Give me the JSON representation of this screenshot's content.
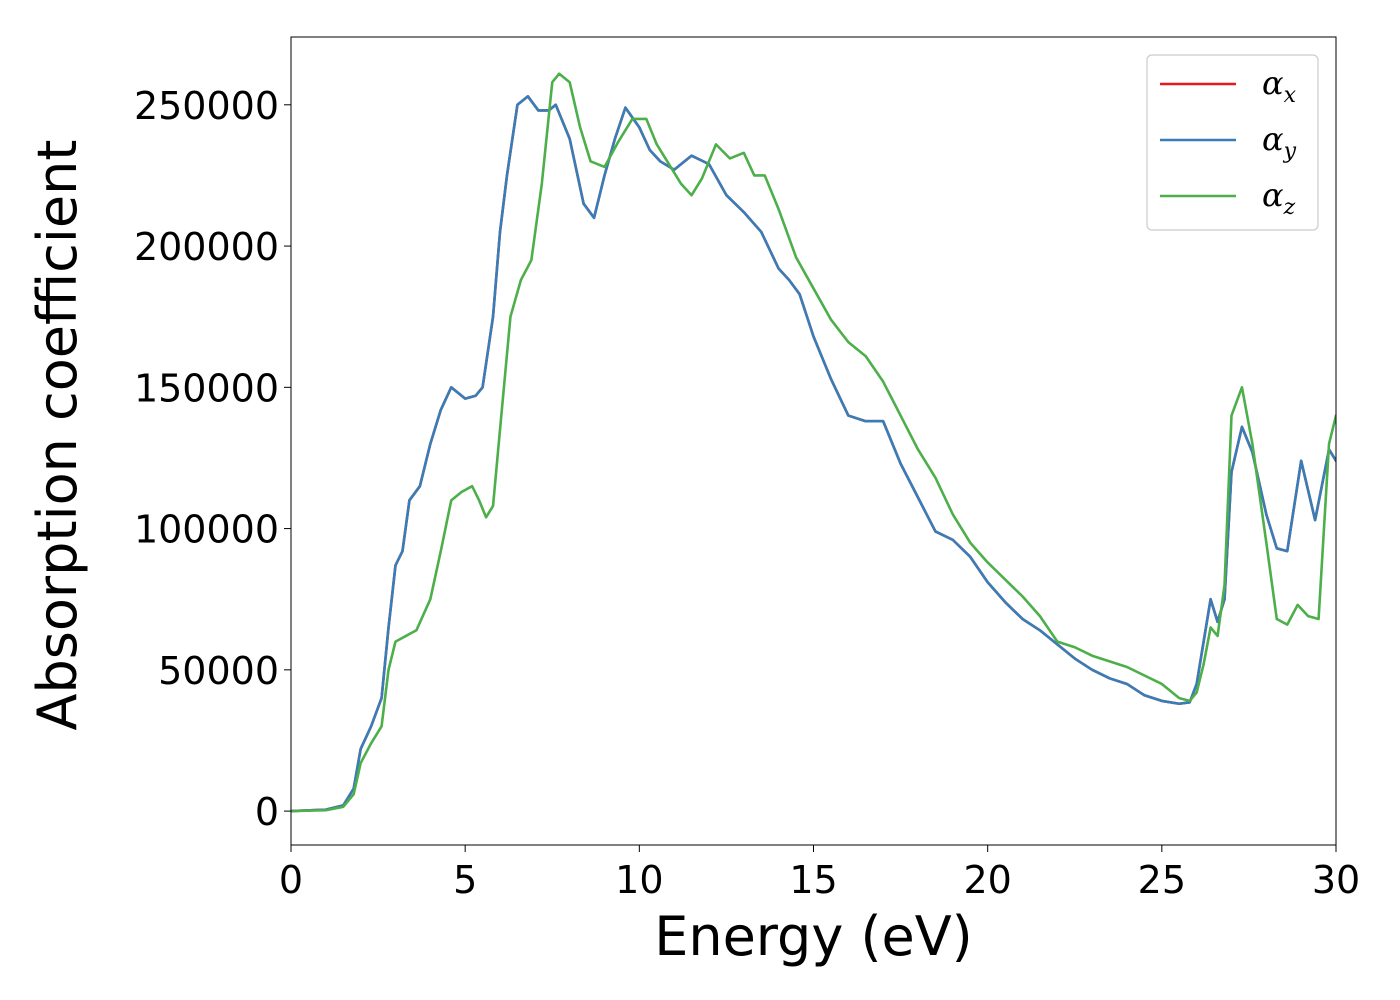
{
  "chart_data": {
    "type": "line",
    "title": "",
    "xlabel": "Energy (eV)",
    "ylabel": "Absorption coefficient",
    "xlim": [
      0,
      30
    ],
    "ylim": [
      -12000,
      274000
    ],
    "xticks": [
      0,
      5,
      10,
      15,
      20,
      25,
      30
    ],
    "xtick_labels": [
      "0",
      "5",
      "10",
      "15",
      "20",
      "25",
      "30"
    ],
    "yticks": [
      0,
      50000,
      100000,
      150000,
      200000,
      250000
    ],
    "ytick_labels": [
      "0",
      "50000",
      "100000",
      "150000",
      "200000",
      "250000"
    ],
    "grid": false,
    "legend_position": "top-right",
    "series": [
      {
        "name": "α_x",
        "legend_main": "α",
        "legend_sub": "x",
        "color": "#e41a1c",
        "x": [
          0,
          1,
          1.5,
          1.8,
          2.0,
          2.3,
          2.6,
          2.8,
          3.0,
          3.2,
          3.4,
          3.7,
          4.0,
          4.3,
          4.6,
          5.0,
          5.3,
          5.5,
          5.8,
          6.0,
          6.2,
          6.5,
          6.8,
          7.1,
          7.4,
          7.6,
          8.0,
          8.4,
          8.7,
          9.0,
          9.3,
          9.6,
          10.0,
          10.3,
          10.6,
          11.0,
          11.5,
          12.0,
          12.5,
          13.0,
          13.5,
          14.0,
          14.3,
          14.6,
          15.0,
          15.5,
          16.0,
          16.5,
          17.0,
          17.5,
          18.0,
          18.5,
          19.0,
          19.5,
          20.0,
          20.5,
          21.0,
          21.5,
          22.0,
          22.5,
          23.0,
          23.5,
          24.0,
          24.5,
          25.0,
          25.5,
          25.8,
          26.0,
          26.2,
          26.4,
          26.6,
          26.8,
          27.0,
          27.3,
          27.6,
          28.0,
          28.3,
          28.6,
          29.0,
          29.4,
          29.8,
          30.0
        ],
        "y": [
          0,
          500,
          2000,
          8000,
          22000,
          30000,
          40000,
          65000,
          87000,
          92000,
          110000,
          115000,
          130000,
          142000,
          150000,
          146000,
          147000,
          150000,
          175000,
          205000,
          225000,
          250000,
          253000,
          248000,
          248000,
          250000,
          238000,
          215000,
          210000,
          225000,
          238000,
          249000,
          242000,
          234000,
          230000,
          227000,
          232000,
          229000,
          218000,
          212000,
          205000,
          192000,
          188000,
          183000,
          168000,
          153000,
          140000,
          138000,
          138000,
          123000,
          111000,
          99000,
          96000,
          90000,
          81000,
          74000,
          68000,
          64000,
          59000,
          54000,
          50000,
          47000,
          45000,
          41000,
          39000,
          38000,
          38500,
          45000,
          60000,
          75000,
          67000,
          75000,
          120000,
          136000,
          127000,
          105000,
          93000,
          92000,
          124000,
          103000,
          128000,
          124000
        ]
      },
      {
        "name": "α_y",
        "legend_main": "α",
        "legend_sub": "y",
        "color": "#377eb8",
        "x": [
          0,
          1,
          1.5,
          1.8,
          2.0,
          2.3,
          2.6,
          2.8,
          3.0,
          3.2,
          3.4,
          3.7,
          4.0,
          4.3,
          4.6,
          5.0,
          5.3,
          5.5,
          5.8,
          6.0,
          6.2,
          6.5,
          6.8,
          7.1,
          7.4,
          7.6,
          8.0,
          8.4,
          8.7,
          9.0,
          9.3,
          9.6,
          10.0,
          10.3,
          10.6,
          11.0,
          11.5,
          12.0,
          12.5,
          13.0,
          13.5,
          14.0,
          14.3,
          14.6,
          15.0,
          15.5,
          16.0,
          16.5,
          17.0,
          17.5,
          18.0,
          18.5,
          19.0,
          19.5,
          20.0,
          20.5,
          21.0,
          21.5,
          22.0,
          22.5,
          23.0,
          23.5,
          24.0,
          24.5,
          25.0,
          25.5,
          25.8,
          26.0,
          26.2,
          26.4,
          26.6,
          26.8,
          27.0,
          27.3,
          27.6,
          28.0,
          28.3,
          28.6,
          29.0,
          29.4,
          29.8,
          30.0
        ],
        "y": [
          0,
          500,
          2000,
          8000,
          22000,
          30000,
          40000,
          65000,
          87000,
          92000,
          110000,
          115000,
          130000,
          142000,
          150000,
          146000,
          147000,
          150000,
          175000,
          205000,
          225000,
          250000,
          253000,
          248000,
          248000,
          250000,
          238000,
          215000,
          210000,
          225000,
          238000,
          249000,
          242000,
          234000,
          230000,
          227000,
          232000,
          229000,
          218000,
          212000,
          205000,
          192000,
          188000,
          183000,
          168000,
          153000,
          140000,
          138000,
          138000,
          123000,
          111000,
          99000,
          96000,
          90000,
          81000,
          74000,
          68000,
          64000,
          59000,
          54000,
          50000,
          47000,
          45000,
          41000,
          39000,
          38000,
          38500,
          45000,
          60000,
          75000,
          67000,
          75000,
          120000,
          136000,
          127000,
          105000,
          93000,
          92000,
          124000,
          103000,
          128000,
          124000
        ]
      },
      {
        "name": "α_z",
        "legend_main": "α",
        "legend_sub": "z",
        "color": "#4daf4a",
        "x": [
          0,
          1,
          1.5,
          1.8,
          2.0,
          2.3,
          2.6,
          2.8,
          3.0,
          3.3,
          3.6,
          4.0,
          4.3,
          4.6,
          4.9,
          5.2,
          5.4,
          5.6,
          5.8,
          6.0,
          6.3,
          6.6,
          6.9,
          7.2,
          7.5,
          7.7,
          8.0,
          8.3,
          8.6,
          9.0,
          9.4,
          9.8,
          10.2,
          10.5,
          10.8,
          11.2,
          11.5,
          11.8,
          12.2,
          12.6,
          13.0,
          13.3,
          13.6,
          14.0,
          14.5,
          15.0,
          15.5,
          16.0,
          16.5,
          17.0,
          17.5,
          18.0,
          18.5,
          19.0,
          19.5,
          20.0,
          20.5,
          21.0,
          21.5,
          22.0,
          22.5,
          23.0,
          23.5,
          24.0,
          24.5,
          25.0,
          25.5,
          25.8,
          26.0,
          26.2,
          26.4,
          26.6,
          26.8,
          27.0,
          27.3,
          27.6,
          28.0,
          28.3,
          28.6,
          28.9,
          29.2,
          29.5,
          29.8,
          30.0
        ],
        "y": [
          0,
          300,
          1500,
          6000,
          17000,
          24000,
          30000,
          50000,
          60000,
          62000,
          64000,
          75000,
          92000,
          110000,
          113000,
          115000,
          110000,
          104000,
          108000,
          135000,
          175000,
          188000,
          195000,
          222000,
          258000,
          261000,
          258000,
          242000,
          230000,
          228000,
          237000,
          245000,
          245000,
          236000,
          230000,
          222000,
          218000,
          224000,
          236000,
          231000,
          233000,
          225000,
          225000,
          213000,
          196000,
          185000,
          174000,
          166000,
          161000,
          152000,
          140000,
          128000,
          118000,
          105000,
          95000,
          88000,
          82000,
          76000,
          69000,
          60000,
          58000,
          55000,
          53000,
          51000,
          48000,
          45000,
          40000,
          39000,
          42000,
          52000,
          65000,
          62000,
          80000,
          140000,
          150000,
          130000,
          95000,
          68000,
          66000,
          73000,
          69000,
          68000,
          130000,
          140000
        ]
      }
    ]
  }
}
